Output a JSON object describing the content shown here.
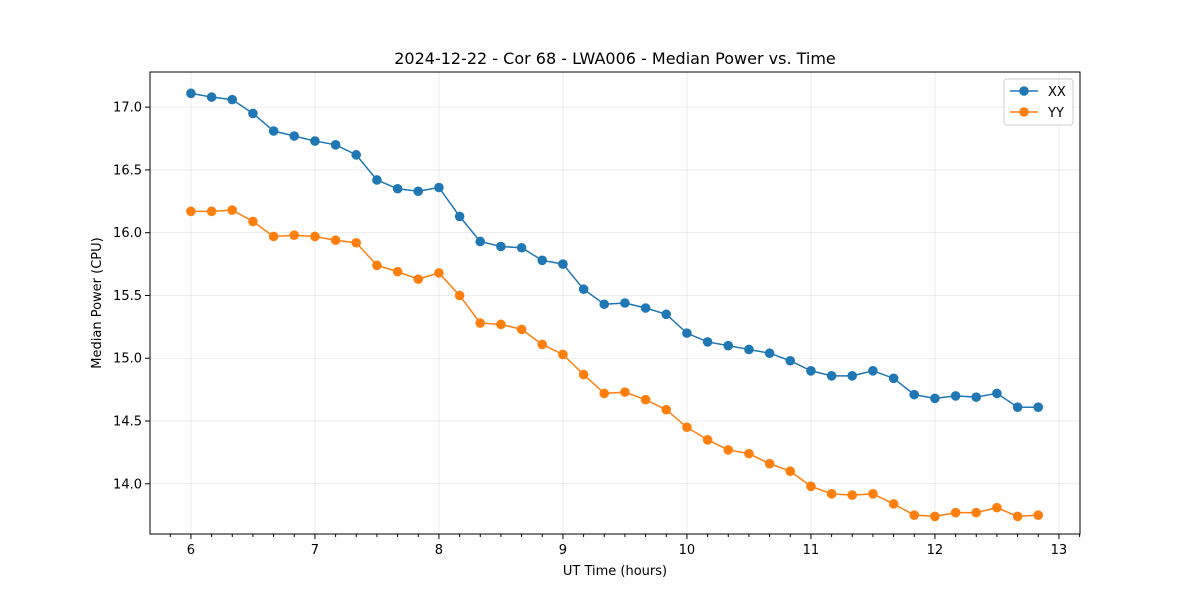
{
  "chart_data": {
    "type": "line",
    "title": "2024-12-22 - Cor 68 - LWA006 - Median Power vs. Time",
    "xlabel": "UT Time (hours)",
    "ylabel": "Median Power (CPU)",
    "xlim": [
      5.67,
      13.17
    ],
    "ylim": [
      13.6,
      17.28
    ],
    "x_ticks": [
      6,
      7,
      8,
      9,
      10,
      11,
      12,
      13
    ],
    "x_tick_labels": [
      "6",
      "7",
      "8",
      "9",
      "10",
      "11",
      "12",
      "13"
    ],
    "y_ticks": [
      14.0,
      14.5,
      15.0,
      15.5,
      16.0,
      16.5,
      17.0
    ],
    "y_tick_labels": [
      "14.0",
      "14.5",
      "15.0",
      "15.5",
      "16.0",
      "16.5",
      "17.0"
    ],
    "grid": true,
    "legend_position": "top-right",
    "x": [
      6.0,
      6.167,
      6.333,
      6.5,
      6.667,
      6.833,
      7.0,
      7.167,
      7.333,
      7.5,
      7.667,
      7.833,
      8.0,
      8.167,
      8.333,
      8.5,
      8.667,
      8.833,
      9.0,
      9.167,
      9.333,
      9.5,
      9.667,
      9.833,
      10.0,
      10.167,
      10.333,
      10.5,
      10.667,
      10.833,
      11.0,
      11.167,
      11.333,
      11.5,
      11.667,
      11.833,
      12.0,
      12.167,
      12.333,
      12.5,
      12.667,
      12.833
    ],
    "series": [
      {
        "name": "XX",
        "color": "#1f77b4",
        "values": [
          17.11,
          17.08,
          17.06,
          16.95,
          16.81,
          16.77,
          16.73,
          16.7,
          16.62,
          16.42,
          16.35,
          16.33,
          16.36,
          16.13,
          15.93,
          15.89,
          15.88,
          15.78,
          15.75,
          15.55,
          15.43,
          15.44,
          15.4,
          15.35,
          15.2,
          15.13,
          15.1,
          15.07,
          15.04,
          14.98,
          14.9,
          14.86,
          14.86,
          14.9,
          14.84,
          14.71,
          14.68,
          14.7,
          14.69,
          14.72,
          14.61,
          14.61
        ]
      },
      {
        "name": "YY",
        "color": "#ff7f0e",
        "values": [
          16.17,
          16.17,
          16.18,
          16.09,
          15.97,
          15.98,
          15.97,
          15.94,
          15.92,
          15.74,
          15.69,
          15.63,
          15.68,
          15.5,
          15.28,
          15.27,
          15.23,
          15.11,
          15.03,
          14.87,
          14.72,
          14.73,
          14.67,
          14.59,
          14.45,
          14.35,
          14.27,
          14.24,
          14.16,
          14.1,
          13.98,
          13.92,
          13.91,
          13.92,
          13.84,
          13.75,
          13.74,
          13.77,
          13.77,
          13.81,
          13.74,
          13.75
        ]
      }
    ]
  }
}
